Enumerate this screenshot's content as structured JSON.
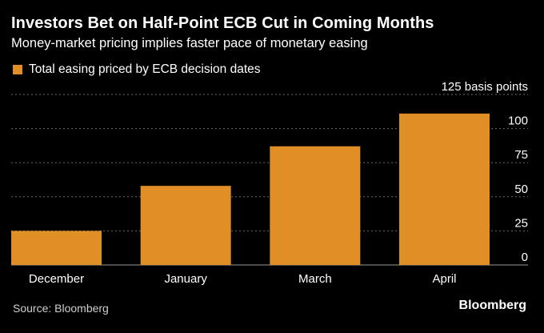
{
  "title": "Investors Bet on Half-Point ECB Cut in Coming Months",
  "subtitle": "Money-market pricing implies faster pace of monetary easing",
  "source": "Source: Bloomberg",
  "brand": "Bloomberg",
  "colors": {
    "bar": "#e08f26",
    "grid": "#6a6a6a",
    "background": "#000000"
  },
  "chart_data": {
    "type": "bar",
    "categories": [
      "December",
      "January",
      "March",
      "April"
    ],
    "series": [
      {
        "name": "Total easing priced by ECB decision dates",
        "values": [
          25,
          58,
          87,
          111
        ]
      }
    ],
    "ylim": [
      0,
      125
    ],
    "yticks": [
      0,
      25,
      50,
      75,
      100,
      125
    ],
    "ytick_labels": [
      "0",
      "25",
      "50",
      "75",
      "100",
      "125 basis points"
    ],
    "y_axis_side": "right",
    "grid": true,
    "legend_position": "top-left"
  }
}
